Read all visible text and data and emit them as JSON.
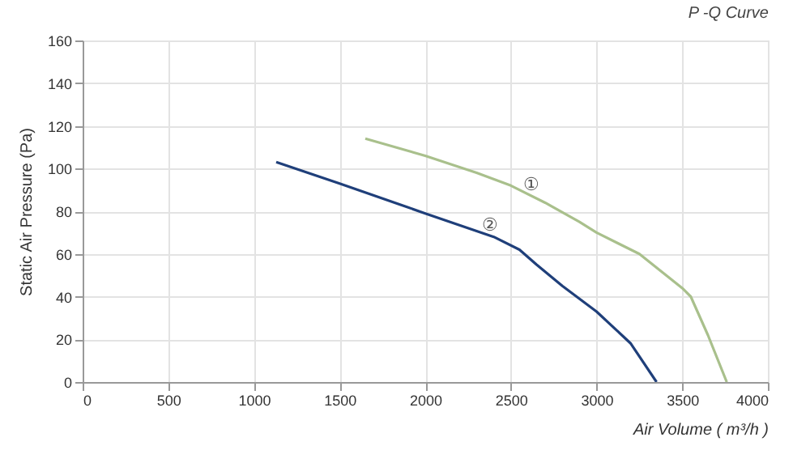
{
  "chart_data": {
    "type": "line",
    "title": "P -Q Curve",
    "xlabel": "Air Volume ( m³/h )",
    "ylabel": "Static Air Pressure  (Pa)",
    "series": [
      {
        "color": "#a9c08c",
        "x": [
          1650,
          2000,
          2300,
          2500,
          2700,
          2900,
          3000,
          3250,
          3500,
          3550,
          3650,
          3760
        ],
        "values": [
          114,
          106,
          98,
          92,
          84,
          75,
          70,
          60,
          44,
          40,
          22,
          0
        ]
      },
      {
        "color": "#1f3f7a",
        "x": [
          1130,
          1500,
          2000,
          2400,
          2550,
          2650,
          2800,
          3000,
          3200,
          3350
        ],
        "values": [
          103,
          93,
          79,
          68,
          62,
          55,
          45,
          33,
          18,
          0
        ]
      }
    ],
    "annotations": [
      {
        "text": "①",
        "x": 2620,
        "y": 92
      },
      {
        "text": "②",
        "x": 2380,
        "y": 73
      }
    ],
    "xlim": [
      0,
      4000
    ],
    "xticks": [
      0,
      500,
      1000,
      1500,
      2000,
      2500,
      3000,
      3500,
      4000
    ],
    "ylim": [
      0,
      160
    ],
    "yticks": [
      0,
      20,
      40,
      60,
      80,
      100,
      120,
      140,
      160
    ],
    "grid": true,
    "line_style": "solid",
    "marker": "none"
  }
}
